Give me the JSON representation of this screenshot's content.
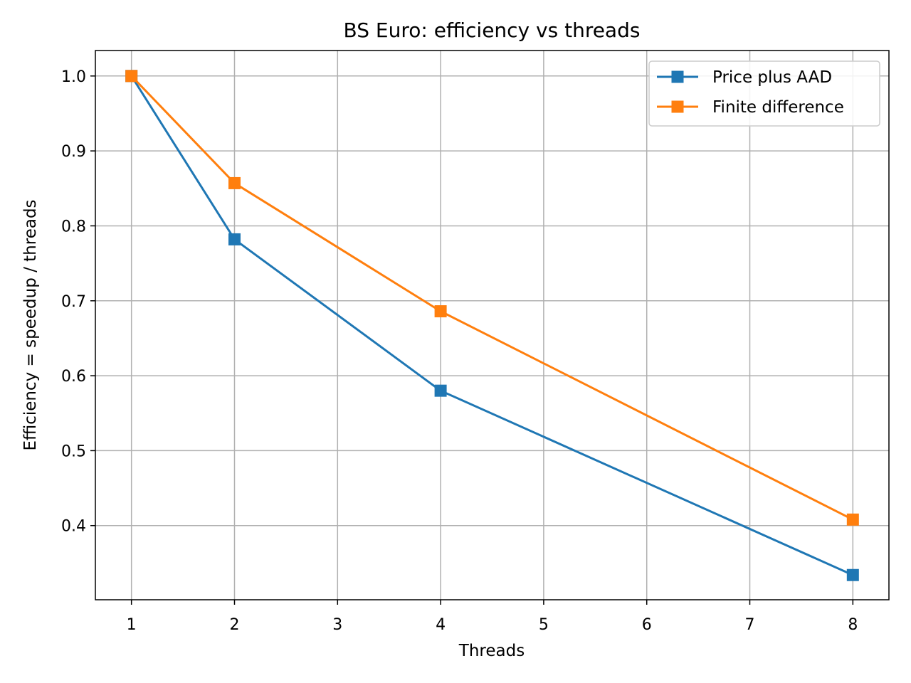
{
  "chart_data": {
    "type": "line",
    "title": "BS Euro: efficiency vs threads",
    "xlabel": "Threads",
    "ylabel": "Efficiency = speedup / threads",
    "x": [
      1,
      2,
      4,
      8
    ],
    "xlim": [
      0.65,
      8.35
    ],
    "ylim": [
      0.301,
      1.034
    ],
    "xticks": [
      1,
      2,
      3,
      4,
      5,
      6,
      7,
      8
    ],
    "yticks": [
      0.4,
      0.5,
      0.6,
      0.7,
      0.8,
      0.9,
      1.0
    ],
    "ytick_labels": [
      "0.4",
      "0.5",
      "0.6",
      "0.7",
      "0.8",
      "0.9",
      "1.0"
    ],
    "grid": true,
    "legend_position": "top-right",
    "series": [
      {
        "name": "Price plus AAD",
        "color": "#1f77b4",
        "marker": "square",
        "values": [
          1.0,
          0.782,
          0.58,
          0.334
        ]
      },
      {
        "name": "Finite difference",
        "color": "#ff7f0e",
        "marker": "square",
        "values": [
          1.0,
          0.857,
          0.686,
          0.408
        ]
      }
    ]
  }
}
